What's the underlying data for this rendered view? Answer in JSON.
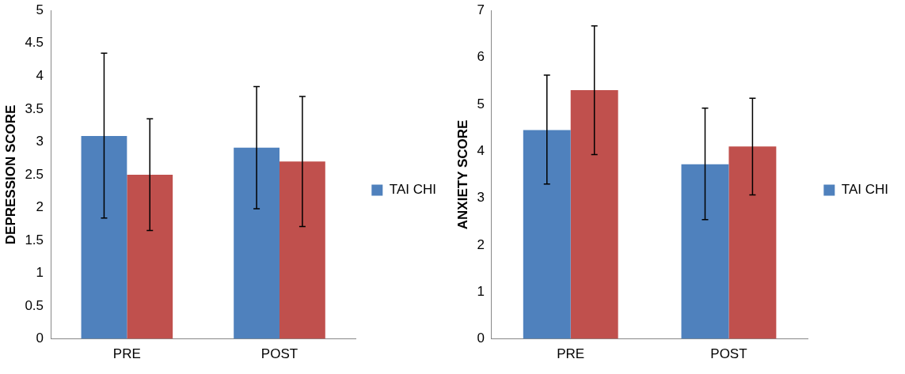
{
  "chart_data": [
    {
      "type": "bar",
      "ylabel": "DEPRESSION SCORE",
      "categories": [
        "PRE",
        "POST"
      ],
      "ylim": [
        0,
        5
      ],
      "yticks": [
        0,
        0.5,
        1,
        1.5,
        2,
        2.5,
        3,
        3.5,
        4,
        4.5,
        5
      ],
      "grid": false,
      "legend": "right",
      "series": [
        {
          "name": "TAI CHI",
          "color": "#4f81bd",
          "values": [
            3.09,
            2.91
          ],
          "errors": [
            [
              1.84,
              4.35
            ],
            [
              1.98,
              3.84
            ]
          ]
        },
        {
          "color": "#c0504d",
          "values": [
            2.5,
            2.7
          ],
          "errors": [
            [
              1.65,
              3.35
            ],
            [
              1.71,
              3.69
            ]
          ]
        }
      ]
    },
    {
      "type": "bar",
      "ylabel": "ANXIETY SCORE",
      "categories": [
        "PRE",
        "POST"
      ],
      "ylim": [
        0,
        7
      ],
      "yticks": [
        0,
        1,
        2,
        3,
        4,
        5,
        6,
        7
      ],
      "grid": false,
      "legend": "right",
      "series": [
        {
          "name": "TAI CHI",
          "color": "#4f81bd",
          "values": [
            4.45,
            3.72
          ],
          "errors": [
            [
              3.3,
              5.62
            ],
            [
              2.54,
              4.92
            ]
          ]
        },
        {
          "color": "#c0504d",
          "values": [
            5.3,
            4.1
          ],
          "errors": [
            [
              3.93,
              6.67
            ],
            [
              3.07,
              5.13
            ]
          ]
        }
      ]
    }
  ]
}
